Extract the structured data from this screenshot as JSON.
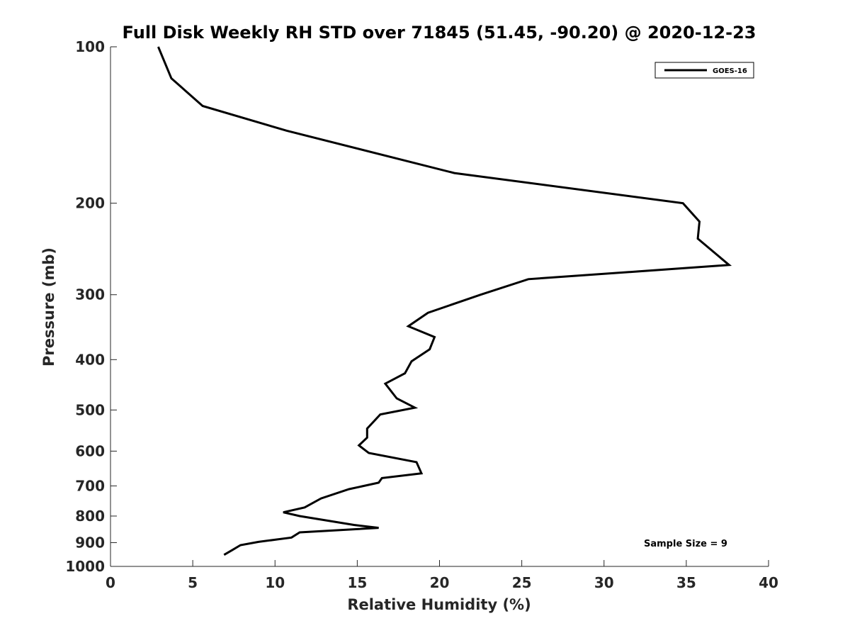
{
  "chart_data": {
    "type": "line",
    "title": "Full Disk Weekly RH STD over 71845 (51.45, -90.20) @ 2020-12-23",
    "xlabel": "Relative Humidity (%)",
    "ylabel": "Pressure (mb)",
    "xlim": [
      0,
      40
    ],
    "ylim": [
      100,
      1000
    ],
    "y_scale": "log",
    "y_reversed": true,
    "x_ticks": [
      "0",
      "5",
      "10",
      "15",
      "20",
      "25",
      "30",
      "35",
      "40"
    ],
    "x_tick_values": [
      0,
      5,
      10,
      15,
      20,
      25,
      30,
      35,
      40
    ],
    "y_ticks": [
      "100",
      "200",
      "300",
      "400",
      "500",
      "600",
      "700",
      "800",
      "900",
      "1000"
    ],
    "y_tick_values": [
      100,
      200,
      300,
      400,
      500,
      600,
      700,
      800,
      900,
      1000
    ],
    "grid": false,
    "legend_position": "top-right",
    "series": [
      {
        "name": "GOES-16",
        "color": "#000000",
        "x": [
          2.9,
          3.7,
          5.6,
          10.7,
          20.9,
          34.8,
          35.8,
          35.7,
          37.6,
          25.4,
          22.5,
          19.3,
          18.1,
          19.7,
          19.4,
          18.3,
          17.9,
          16.7,
          17.4,
          18.5,
          16.4,
          15.6,
          15.6,
          15.1,
          15.7,
          18.6,
          18.9,
          16.5,
          16.3,
          14.5,
          12.8,
          11.8,
          10.5,
          11.5,
          14.8,
          16.3,
          11.5,
          11.0,
          9.0,
          7.9,
          7.4,
          6.9
        ],
        "y": [
          100,
          115,
          130,
          145,
          175,
          200,
          217,
          234,
          263,
          280,
          300,
          325,
          345,
          362,
          382,
          403,
          425,
          445,
          475,
          495,
          510,
          543,
          565,
          585,
          605,
          630,
          662,
          676,
          690,
          710,
          740,
          770,
          787,
          800,
          832,
          843,
          860,
          880,
          897,
          910,
          930,
          950
        ]
      }
    ],
    "annotations": [
      "Sample Size = 9"
    ]
  }
}
